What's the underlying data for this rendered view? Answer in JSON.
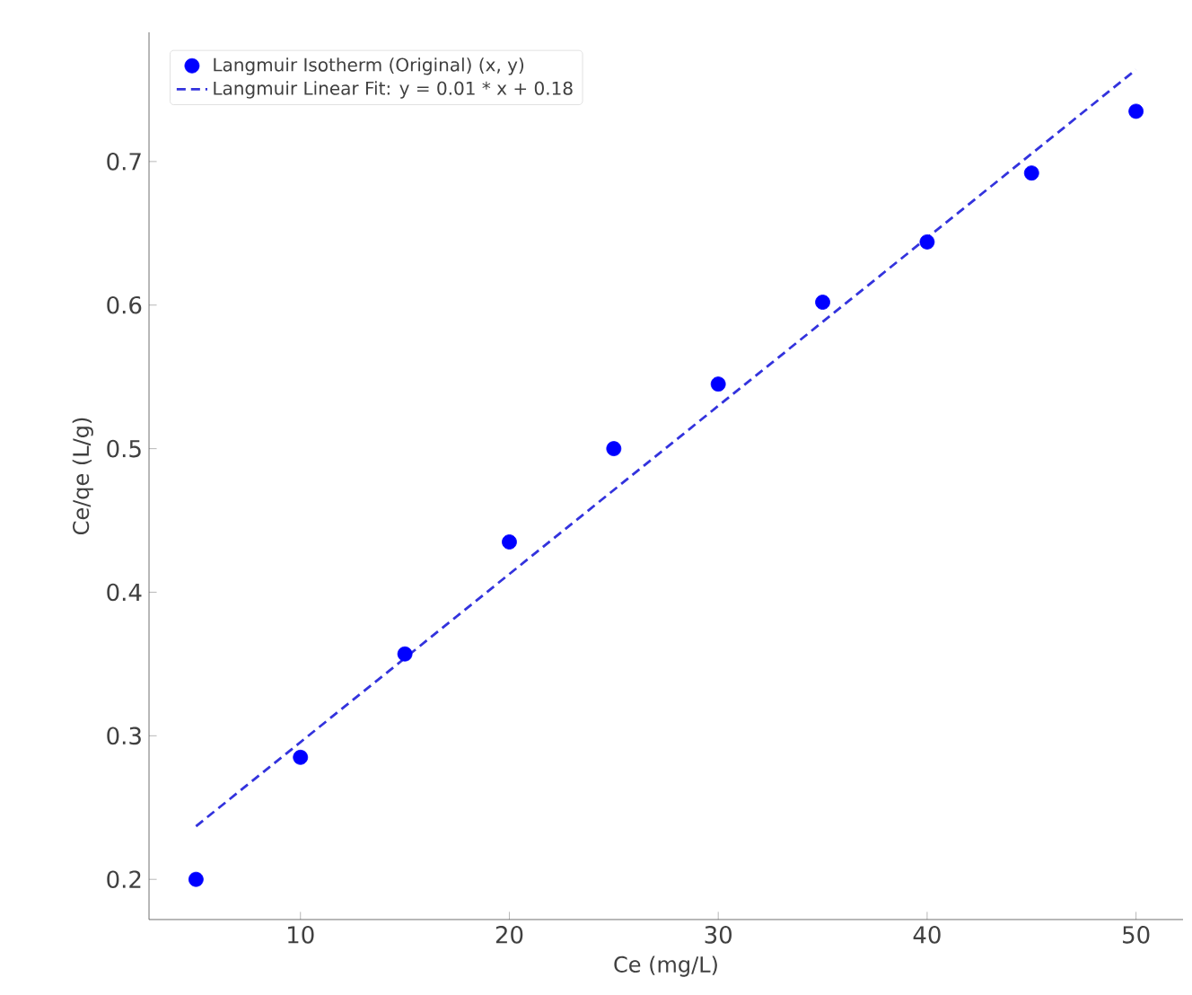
{
  "chart_data": {
    "type": "scatter",
    "xlabel": "Ce (mg/L)",
    "ylabel": "Ce/qe (L/g)",
    "xlim": [
      2.75,
      52.25
    ],
    "ylim": [
      0.172,
      0.79
    ],
    "xticks": [
      10,
      20,
      30,
      40,
      50
    ],
    "yticks": [
      0.2,
      0.3,
      0.4,
      0.5,
      0.6,
      0.7
    ],
    "legend": "top left",
    "grid": false,
    "series": [
      {
        "name": "Langmuir Isotherm (Original) (x, y)",
        "marker": "circle",
        "color": "#0000ff",
        "x": [
          5,
          10,
          15,
          20,
          25,
          30,
          35,
          40,
          45,
          50
        ],
        "values": [
          0.2,
          0.285,
          0.357,
          0.435,
          0.5,
          0.545,
          0.602,
          0.644,
          0.692,
          0.735
        ]
      },
      {
        "name": "Langmuir Linear Fit: y = 0.01 * x + 0.18",
        "type": "line",
        "line_style": "dashed",
        "marker": "none",
        "color": "#3333dd",
        "x": [
          5,
          50
        ],
        "values": [
          0.237,
          0.764
        ]
      }
    ]
  }
}
